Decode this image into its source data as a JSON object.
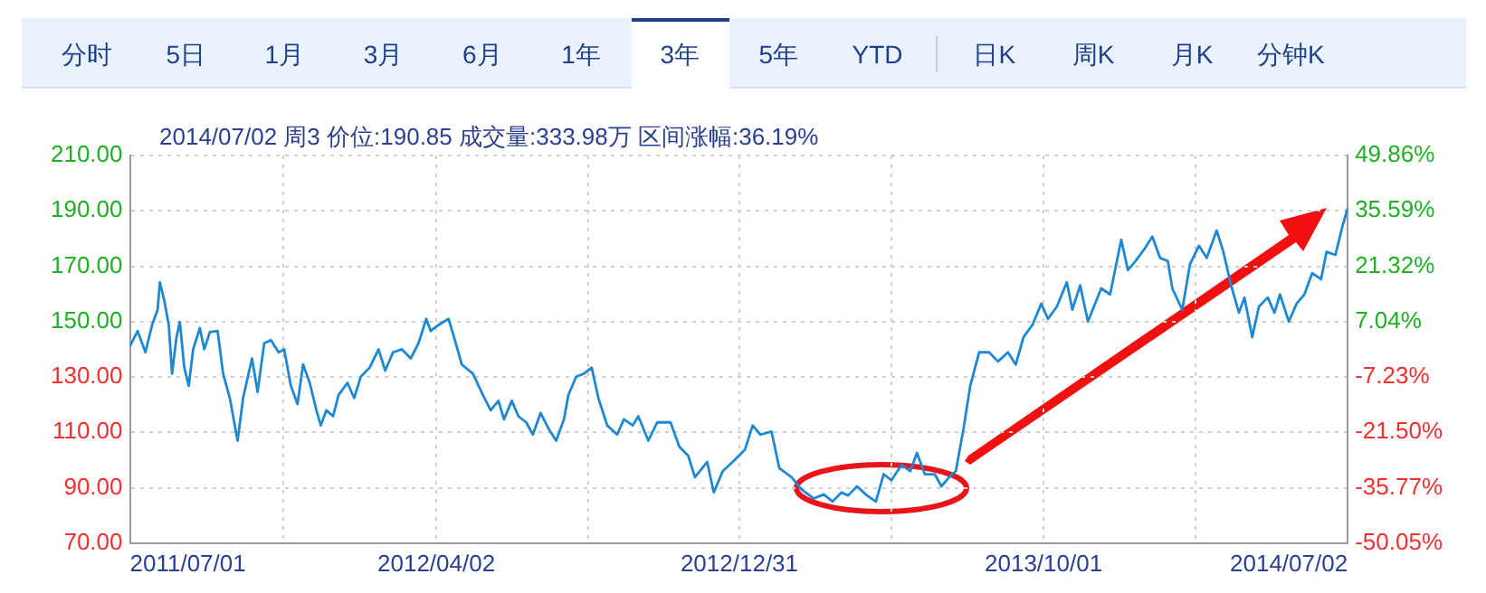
{
  "chart_data": {
    "type": "line",
    "title": "2014/07/02 周3 价位:190.85 成交量:333.98万 区间涨幅:36.19%",
    "annotations": [
      "分时",
      "5日",
      "1月",
      "3月",
      "6月",
      "1年",
      "3年",
      "5年",
      "YTD",
      "日K",
      "周K",
      "月K",
      "分钟K"
    ],
    "x": [
      "2011-07-01",
      "2011-07-08",
      "2011-07-15",
      "2011-07-21",
      "2011-07-26",
      "2011-07-28",
      "2011-08-01",
      "2011-08-05",
      "2011-08-08",
      "2011-08-12",
      "2011-08-15",
      "2011-08-19",
      "2011-08-23",
      "2011-08-27",
      "2011-09-02",
      "2011-09-06",
      "2011-09-11",
      "2011-09-18",
      "2011-09-23",
      "2011-09-29",
      "2011-10-06",
      "2011-10-11",
      "2011-10-19",
      "2011-10-24",
      "2011-10-30",
      "2011-11-05",
      "2011-11-12",
      "2011-11-17",
      "2011-11-23",
      "2011-11-29",
      "2011-12-04",
      "2011-12-10",
      "2011-12-16",
      "2011-12-20",
      "2011-12-25",
      "2011-12-31",
      "2012-01-05",
      "2012-01-13",
      "2012-01-19",
      "2012-01-25",
      "2012-02-02",
      "2012-02-10",
      "2012-02-16",
      "2012-02-23",
      "2012-03-02",
      "2012-03-10",
      "2012-03-17",
      "2012-03-24",
      "2012-03-28",
      "2012-04-04",
      "2012-04-13",
      "2012-04-18",
      "2012-04-25",
      "2012-05-05",
      "2012-05-14",
      "2012-05-21",
      "2012-05-28",
      "2012-06-02",
      "2012-06-09",
      "2012-06-15",
      "2012-06-22",
      "2012-06-28",
      "2012-07-05",
      "2012-07-12",
      "2012-07-19",
      "2012-07-26",
      "2012-07-30",
      "2012-08-06",
      "2012-08-13",
      "2012-08-20",
      "2012-08-26",
      "2012-09-03",
      "2012-09-12",
      "2012-09-18",
      "2012-09-26",
      "2012-10-01",
      "2012-10-10",
      "2012-10-18",
      "2012-10-30",
      "2012-11-07",
      "2012-11-15",
      "2012-11-21",
      "2012-12-02",
      "2012-12-08",
      "2012-12-16",
      "2012-12-25",
      "2013-01-05",
      "2013-01-12",
      "2013-01-19",
      "2013-01-29",
      "2013-02-05",
      "2013-02-16",
      "2013-02-25",
      "2013-03-08",
      "2013-03-17",
      "2013-03-25",
      "2013-04-02",
      "2013-04-08",
      "2013-04-16",
      "2013-04-25",
      "2013-05-03",
      "2013-05-10",
      "2013-05-17",
      "2013-05-26",
      "2013-06-03",
      "2013-06-09",
      "2013-06-16",
      "2013-06-25",
      "2013-07-01",
      "2013-07-08",
      "2013-07-14",
      "2013-07-21",
      "2013-07-27",
      "2013-08-04",
      "2013-08-13",
      "2013-08-21",
      "2013-08-30",
      "2013-09-06",
      "2013-09-13",
      "2013-09-21",
      "2013-09-29",
      "2013-10-05",
      "2013-10-13",
      "2013-10-22",
      "2013-10-27",
      "2013-11-03",
      "2013-11-10",
      "2013-11-22",
      "2013-11-30",
      "2013-12-10",
      "2013-12-16",
      "2013-12-23",
      "2013-12-31",
      "2014-01-07",
      "2014-01-14",
      "2014-01-21",
      "2014-01-25",
      "2014-02-03",
      "2014-02-10",
      "2014-02-18",
      "2014-02-25",
      "2014-03-06",
      "2014-03-12",
      "2014-03-19",
      "2014-03-26",
      "2014-03-31",
      "2014-04-07",
      "2014-04-13",
      "2014-04-21",
      "2014-04-27",
      "2014-05-02",
      "2014-05-10",
      "2014-05-17",
      "2014-05-24",
      "2014-05-31",
      "2014-06-08",
      "2014-06-13",
      "2014-06-21",
      "2014-06-27",
      "2014-07-02"
    ],
    "series": [
      {
        "color": "#1e88d2",
        "values": [
          141.1,
          146.6,
          138.9,
          148.8,
          154.3,
          164.2,
          157.6,
          148.8,
          131.2,
          144.4,
          149.9,
          133.4,
          126.8,
          140.0,
          147.7,
          140.0,
          146.2,
          146.6,
          131.2,
          122.4,
          107.0,
          122.4,
          136.7,
          124.6,
          142.2,
          143.3,
          138.9,
          140.0,
          126.8,
          120.2,
          134.5,
          127.9,
          118.0,
          112.5,
          118.0,
          115.8,
          123.5,
          127.9,
          122.4,
          130.1,
          133.4,
          140.0,
          132.3,
          138.9,
          140.0,
          136.7,
          142.2,
          151.0,
          146.6,
          148.8,
          151.0,
          144.4,
          134.5,
          131.2,
          123.5,
          118.0,
          121.4,
          114.7,
          121.4,
          115.8,
          113.6,
          109.2,
          117.0,
          111.4,
          107.0,
          114.7,
          123.5,
          130.1,
          131.2,
          133.4,
          122.4,
          112.5,
          109.2,
          114.7,
          112.5,
          115.8,
          107.0,
          113.6,
          113.6,
          104.8,
          101.5,
          93.8,
          99.3,
          88.3,
          96.0,
          99.3,
          103.7,
          112.5,
          109.2,
          110.3,
          97.1,
          93.8,
          89.4,
          86.1,
          87.6,
          85.0,
          88.3,
          87.2,
          90.5,
          87.2,
          85.0,
          94.9,
          92.7,
          98.2,
          96.0,
          102.6,
          94.9,
          94.9,
          90.5,
          93.8,
          96.0,
          111.4,
          126.8,
          138.9,
          138.9,
          135.6,
          138.9,
          134.5,
          144.4,
          148.8,
          156.5,
          151.0,
          155.4,
          164.2,
          154.3,
          163.1,
          150.0,
          162.0,
          159.8,
          179.6,
          168.6,
          171.9,
          176.3,
          180.7,
          173.0,
          171.9,
          162.0,
          154.3,
          170.8,
          177.4,
          173.0,
          182.9,
          175.2,
          163.1,
          153.2,
          158.7,
          144.4,
          155.4,
          158.7,
          153.2,
          159.8,
          150.0,
          156.5,
          159.8,
          167.5,
          165.3,
          175.2,
          174.1,
          184.0,
          190.9
        ]
      }
    ],
    "xlim": [
      "2011-07-01",
      "2014-07-02"
    ],
    "xticks": [
      {
        "value": "2011-07-01",
        "label": "2011/07/01"
      },
      {
        "value": "2011-11-16",
        "label": null
      },
      {
        "value": "2012-04-02",
        "label": "2012/04/02"
      },
      {
        "value": "2012-08-17",
        "label": null
      },
      {
        "value": "2012-12-31",
        "label": "2012/12/31"
      },
      {
        "value": "2013-05-17",
        "label": null
      },
      {
        "value": "2013-10-01",
        "label": "2013/10/01"
      },
      {
        "value": "2014-02-15",
        "label": null
      },
      {
        "value": "2014-07-02",
        "label": "2014/07/02"
      }
    ],
    "ylim": [
      70,
      210
    ],
    "yticks": [
      {
        "value": 70,
        "label": "70.00"
      },
      {
        "value": 90,
        "label": "90.00"
      },
      {
        "value": 110,
        "label": "110.00"
      },
      {
        "value": 130,
        "label": "130.00"
      },
      {
        "value": 150,
        "label": "150.00"
      },
      {
        "value": 170,
        "label": "170.00"
      },
      {
        "value": 190,
        "label": "190.00"
      },
      {
        "value": 210,
        "label": "210.00"
      }
    ],
    "y2lim": [
      -50.05,
      49.86
    ],
    "y2ticks": [
      {
        "value": -50.05,
        "label": "-50.05%"
      },
      {
        "value": -35.77,
        "label": "-35.77%"
      },
      {
        "value": -21.5,
        "label": "-21.50%"
      },
      {
        "value": -7.23,
        "label": "-7.23%"
      },
      {
        "value": 7.04,
        "label": "7.04%"
      },
      {
        "value": 21.32,
        "label": "21.32%"
      },
      {
        "value": 35.59,
        "label": "35.59%"
      },
      {
        "value": 49.86,
        "label": "49.86%"
      }
    ],
    "grid": true,
    "legend": false,
    "marker": "none",
    "line_style": "solid"
  }
}
